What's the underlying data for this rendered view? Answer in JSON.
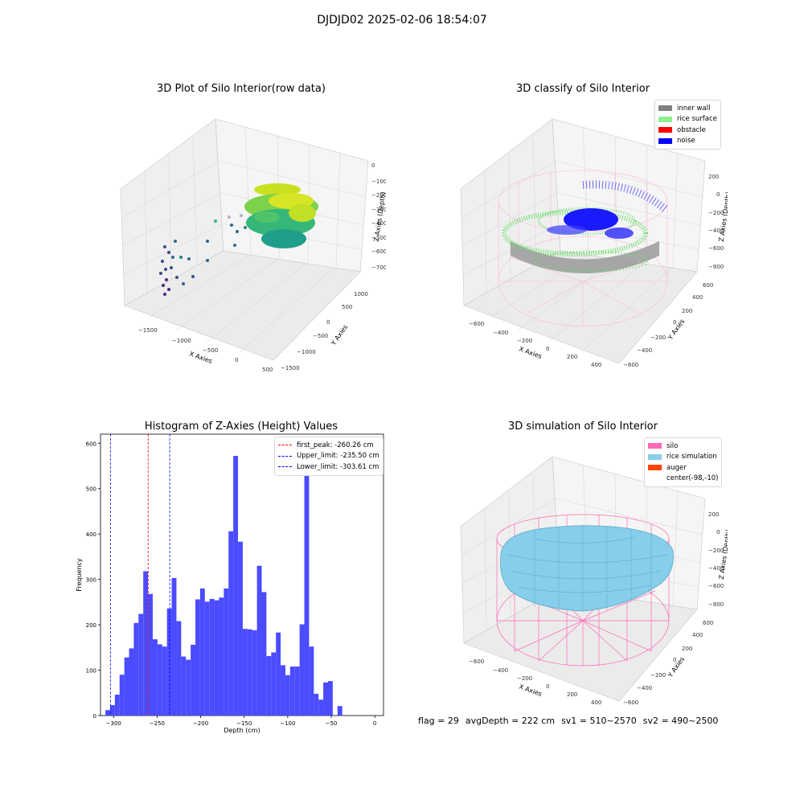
{
  "suptitle": "DJDJD02 2025-02-06 18:54:07",
  "colors": {
    "pane": "#f3f3f3",
    "grid": "#dcdcdc",
    "hist_bar": "#4b4bff",
    "first_peak": "#ff0000",
    "limit": "#0000ff",
    "inner_wall": "#808080",
    "rice_surface": "#90ee90",
    "obstacle": "#ff0000",
    "noise": "#0000ff",
    "silo": "#ff69b4",
    "rice_simulation": "#87ceeb",
    "auger": "#ff4500"
  },
  "chart_data": [
    {
      "type": "scatter",
      "title": "3D Plot of Silo Interior(row data)",
      "xlabel": "X Axies",
      "ylabel": "Y Axies",
      "zlabel": "Z Axies (Depth)",
      "x_ticks": [
        "−1500",
        "−1000",
        "−500",
        "0",
        "500"
      ],
      "y_ticks": [
        "−1500",
        "−1000",
        "−500",
        "0",
        "500",
        "1000"
      ],
      "z_ticks": [
        "0",
        "−100",
        "−200",
        "−300",
        "−400",
        "−500",
        "−600",
        "−700"
      ]
    },
    {
      "type": "scatter",
      "title": "3D classify of Silo Interior",
      "xlabel": "X Axies",
      "ylabel": "Y Axies",
      "zlabel": "Z Axies (Depth)",
      "x_ticks": [
        "−600",
        "−400",
        "−200",
        "0",
        "200",
        "400"
      ],
      "y_ticks": [
        "−600",
        "−400",
        "−200",
        "0",
        "200",
        "400",
        "600"
      ],
      "z_ticks": [
        "200",
        "0",
        "−200",
        "−400",
        "−600",
        "−800"
      ],
      "legend": [
        "inner wall",
        "rice surface",
        "obstacle",
        "noise"
      ],
      "legend_placement": "top-right"
    },
    {
      "type": "bar",
      "title": "Histogram of Z-Axies (Height) Values",
      "xlabel": "Depth (cm)",
      "ylabel": "Frequency",
      "xlim": [
        -315,
        10
      ],
      "ylim": [
        0,
        620
      ],
      "x_ticks": [
        -300,
        -250,
        -200,
        -150,
        -100,
        -50,
        0
      ],
      "x_tick_labels": [
        "−300",
        "−250",
        "−200",
        "−150",
        "−100",
        "−50",
        "0"
      ],
      "y_ticks": [
        0,
        100,
        200,
        300,
        400,
        500,
        600
      ],
      "bin_start": -309.4,
      "bin_width": 5.44,
      "values": [
        12,
        23,
        46,
        90,
        128,
        148,
        204,
        224,
        318,
        268,
        168,
        157,
        152,
        236,
        303,
        208,
        130,
        123,
        156,
        256,
        280,
        251,
        257,
        254,
        260,
        280,
        406,
        572,
        383,
        191,
        190,
        188,
        330,
        272,
        131,
        139,
        183,
        111,
        89,
        108,
        108,
        201,
        592,
        152,
        48,
        35,
        73,
        76,
        0,
        21
      ],
      "lines": [
        {
          "label": "first_peak: -260.26 cm",
          "x": -260.26,
          "color": "#ff0000"
        },
        {
          "label": "Upper_limit: -235.50 cm",
          "x": -235.5,
          "color": "#0000ff"
        },
        {
          "label": "Lower_limit: -303.61 cm",
          "x": -303.61,
          "color": "#0000ff"
        }
      ],
      "legend_placement": "top-right"
    },
    {
      "type": "surface",
      "title": "3D simulation of Silo Interior",
      "xlabel": "X Axies",
      "ylabel": "Y Axies",
      "zlabel": "Z Axies (Depth)",
      "x_ticks": [
        "−600",
        "−400",
        "−200",
        "0",
        "200",
        "400"
      ],
      "y_ticks": [
        "−600",
        "−400",
        "−200",
        "0",
        "200",
        "400",
        "600"
      ],
      "z_ticks": [
        "200",
        "0",
        "−200",
        "−400",
        "−600",
        "−800"
      ],
      "legend": [
        "silo",
        "rice simulation",
        "auger",
        "center(-98,-10)"
      ],
      "legend_placement": "top-right"
    }
  ],
  "footer": {
    "flag": "flag = 29",
    "avg_depth": "avgDepth = 222 cm",
    "sv1": "sv1 = 510~2570",
    "sv2": "sv2 = 490~2500"
  }
}
